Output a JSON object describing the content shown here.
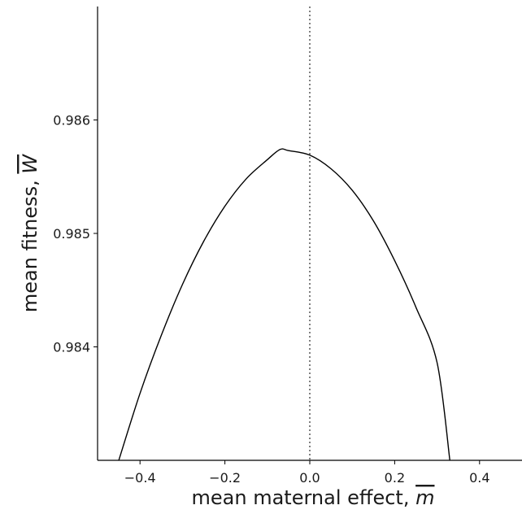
{
  "chart_data": {
    "type": "line",
    "xlabel_text": "mean maternal effect, ",
    "xlabel_symbol": "m",
    "ylabel_text": "mean fitness, ",
    "ylabel_symbol": "W",
    "xlim": [
      -0.5,
      0.5
    ],
    "ylim": [
      0.983,
      0.987
    ],
    "x_ticks": [
      {
        "value": -0.4,
        "label": "−0.4"
      },
      {
        "value": -0.2,
        "label": "−0.2"
      },
      {
        "value": 0.0,
        "label": "0.0"
      },
      {
        "value": 0.2,
        "label": "0.2"
      },
      {
        "value": 0.4,
        "label": "0.4"
      }
    ],
    "y_ticks": [
      {
        "value": 0.984,
        "label": "0.984"
      },
      {
        "value": 0.985,
        "label": "0.985"
      },
      {
        "value": 0.986,
        "label": "0.986"
      }
    ],
    "reference_line": {
      "x": 0.0,
      "style": "dotted"
    },
    "grid": false,
    "series": [
      {
        "color": "#000000",
        "x": [
          -0.45,
          -0.4,
          -0.35,
          -0.3,
          -0.25,
          -0.2,
          -0.15,
          -0.1,
          -0.07,
          -0.05,
          0.0,
          0.05,
          0.1,
          0.15,
          0.2,
          0.25,
          0.3,
          0.33
        ],
        "y": [
          0.983,
          0.98359,
          0.9841,
          0.98455,
          0.98493,
          0.98524,
          0.98548,
          0.98565,
          0.98574,
          0.98573,
          0.98569,
          0.98557,
          0.98538,
          0.98511,
          0.98476,
          0.98435,
          0.98386,
          0.983
        ]
      }
    ]
  }
}
